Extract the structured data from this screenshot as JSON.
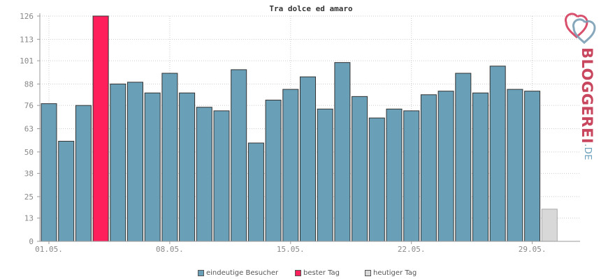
{
  "chart_data": {
    "type": "bar",
    "title": "Tra dolce ed amaro",
    "xlabel": "",
    "ylabel": "",
    "ylim": [
      0,
      126
    ],
    "yticks": [
      0,
      13,
      25,
      38,
      50,
      63,
      76,
      88,
      101,
      113,
      126
    ],
    "categories": [
      "01.05.",
      "02.05.",
      "03.05.",
      "04.05.",
      "05.05.",
      "06.05.",
      "07.05.",
      "08.05.",
      "09.05.",
      "10.05.",
      "11.05.",
      "12.05.",
      "13.05.",
      "14.05.",
      "15.05.",
      "16.05.",
      "17.05.",
      "18.05.",
      "19.05.",
      "20.05.",
      "21.05.",
      "22.05.",
      "23.05.",
      "24.05.",
      "25.05.",
      "26.05.",
      "27.05.",
      "28.05.",
      "29.05.",
      "30.05."
    ],
    "xtick_labels": [
      "01.05.",
      "08.05.",
      "15.05.",
      "22.05.",
      "29.05."
    ],
    "xtick_indices": [
      0,
      7,
      14,
      21,
      28
    ],
    "values": [
      77,
      56,
      76,
      126,
      88,
      89,
      83,
      94,
      83,
      75,
      73,
      96,
      55,
      79,
      85,
      92,
      74,
      100,
      81,
      69,
      74,
      73,
      82,
      84,
      94,
      83,
      98,
      85,
      84,
      18
    ],
    "kinds": [
      "n",
      "n",
      "n",
      "best",
      "n",
      "n",
      "n",
      "n",
      "n",
      "n",
      "n",
      "n",
      "n",
      "n",
      "n",
      "n",
      "n",
      "n",
      "n",
      "n",
      "n",
      "n",
      "n",
      "n",
      "n",
      "n",
      "n",
      "n",
      "n",
      "today"
    ],
    "grid": true,
    "legend_position": "bottom-center",
    "legend": [
      {
        "label": "eindeutige Besucher",
        "color": "#6a9fb8"
      },
      {
        "label": "bester Tag",
        "color": "#ff1f5a"
      },
      {
        "label": "heutiger Tag",
        "color": "#d8d8d8"
      }
    ],
    "colors": {
      "normal": "#6a9fb8",
      "best": "#ff1f5a",
      "today": "#d8d8d8",
      "border": "#333333",
      "grid": "#cccccc",
      "axis": "#999999"
    }
  },
  "logo": {
    "brand": "BLOGGEREI",
    "tld": ".DE",
    "icon": "bloggerei-heart-icon"
  }
}
